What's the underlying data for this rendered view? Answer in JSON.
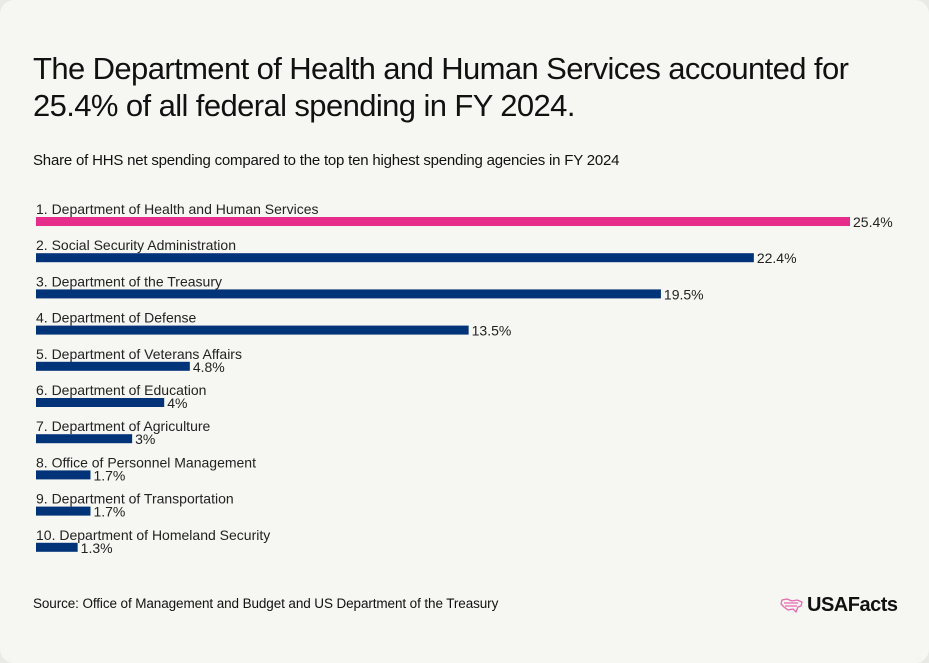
{
  "header": {
    "title": "The Department of Health and Human Services accounted for 25.4% of all federal spending in FY 2024.",
    "subtitle": "Share of HHS net spending compared to the top ten highest spending agencies in FY 2024"
  },
  "footer": {
    "source": "Source: Office of Management and Budget and US Department of the Treasury",
    "logo_text": "USAFacts",
    "logo_icon": "us-map-flag-icon"
  },
  "colors": {
    "highlight": "#e62d8b",
    "default_bar": "#013378",
    "logo_accent": "#e86ab0"
  },
  "chart_data": {
    "type": "bar",
    "orientation": "horizontal",
    "title": "Share of HHS net spending compared to the top ten highest spending agencies in FY 2024",
    "xlabel": "",
    "ylabel": "",
    "unit": "%",
    "xlim": [
      0,
      25.4
    ],
    "grid": false,
    "legend": "none",
    "categories": [
      "1. Department of Health and Human Services",
      "2. Social Security Administration",
      "3. Department of the Treasury",
      "4. Department of Defense",
      "5. Department of Veterans Affairs",
      "6. Department of Education",
      "7. Department of Agriculture",
      "8. Office of Personnel Management",
      "9. Department of Transportation",
      "10. Department of Homeland Security"
    ],
    "values": [
      25.4,
      22.4,
      19.5,
      13.5,
      4.8,
      4,
      3,
      1.7,
      1.7,
      1.3
    ],
    "labels": [
      "25.4%",
      "22.4%",
      "19.5%",
      "13.5%",
      "4.8%",
      "4%",
      "3%",
      "1.7%",
      "1.7%",
      "1.3%"
    ],
    "highlighted_index": 0
  }
}
